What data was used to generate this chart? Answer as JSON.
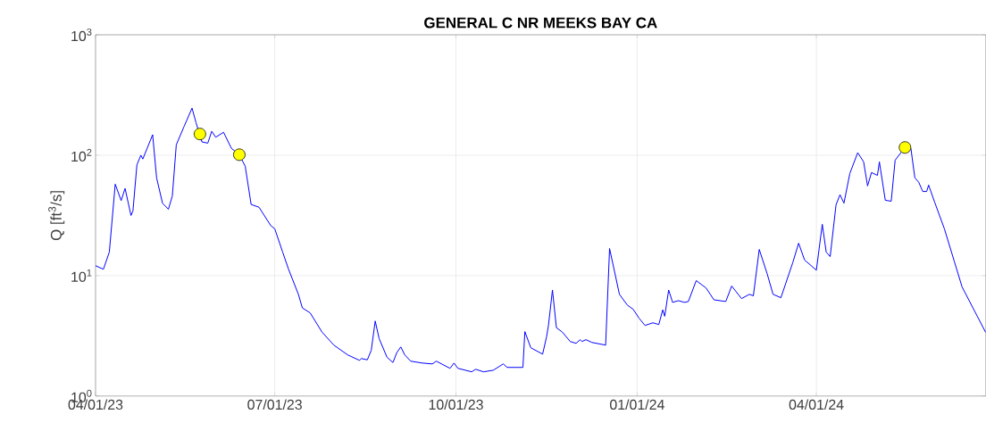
{
  "chart_data": {
    "type": "line",
    "title": "GENERAL C NR MEEKS BAY CA",
    "ylabel": "Q [ft$^{3}$/s]",
    "xlim": [
      "2023-04-01",
      "2024-06-26"
    ],
    "ylim": [
      1,
      1000
    ],
    "log": true,
    "grid": true,
    "xticks": [
      {
        "value": "2023-04-01",
        "label": "04/01/23"
      },
      {
        "value": "2023-07-01",
        "label": "07/01/23"
      },
      {
        "value": "2023-10-01",
        "label": "10/01/23"
      },
      {
        "value": "2024-01-01",
        "label": "01/01/24"
      },
      {
        "value": "2024-04-01",
        "label": "04/01/24"
      }
    ],
    "yticks": [
      {
        "value": 1,
        "label": "10$^{0}$"
      },
      {
        "value": 10,
        "label": "10$^{1}$"
      },
      {
        "value": 100,
        "label": "10$^{2}$"
      },
      {
        "value": 1000,
        "label": "10$^{3}$"
      }
    ],
    "series": [
      {
        "color": "#0000ff",
        "x": [
          "2023-04-01",
          "2023-04-05",
          "2023-04-08",
          "2023-04-11",
          "2023-04-14",
          "2023-04-16",
          "2023-04-19",
          "2023-04-20",
          "2023-04-22",
          "2023-04-24",
          "2023-04-25",
          "2023-04-30",
          "2023-05-02",
          "2023-05-05",
          "2023-05-08",
          "2023-05-10",
          "2023-05-12",
          "2023-05-16",
          "2023-05-20",
          "2023-05-22",
          "2023-05-25",
          "2023-05-28",
          "2023-05-30",
          "2023-06-01",
          "2023-06-05",
          "2023-06-09",
          "2023-06-13",
          "2023-06-16",
          "2023-06-19",
          "2023-06-23",
          "2023-06-29",
          "2023-07-01",
          "2023-07-05",
          "2023-07-08",
          "2023-07-13",
          "2023-07-15",
          "2023-07-19",
          "2023-07-25",
          "2023-07-31",
          "2023-08-07",
          "2023-08-13",
          "2023-08-14",
          "2023-08-17",
          "2023-08-19",
          "2023-08-21",
          "2023-08-23",
          "2023-08-27",
          "2023-08-30",
          "2023-09-01",
          "2023-09-03",
          "2023-09-05",
          "2023-09-08",
          "2023-09-14",
          "2023-09-19",
          "2023-09-21",
          "2023-09-28",
          "2023-09-30",
          "2023-10-02",
          "2023-10-09",
          "2023-10-11",
          "2023-10-15",
          "2023-10-20",
          "2023-10-25",
          "2023-10-27",
          "2023-11-04",
          "2023-11-05",
          "2023-11-08",
          "2023-11-14",
          "2023-11-16",
          "2023-11-17",
          "2023-11-19",
          "2023-11-21",
          "2023-11-24",
          "2023-11-28",
          "2023-12-01",
          "2023-12-03",
          "2023-12-04",
          "2023-12-06",
          "2023-12-09",
          "2023-12-16",
          "2023-12-18",
          "2023-12-23",
          "2023-12-27",
          "2023-12-30",
          "2024-01-02",
          "2024-01-05",
          "2024-01-09",
          "2024-01-12",
          "2024-01-14",
          "2024-01-15",
          "2024-01-17",
          "2024-01-19",
          "2024-01-22",
          "2024-01-25",
          "2024-01-27",
          "2024-01-31",
          "2024-02-05",
          "2024-02-09",
          "2024-02-15",
          "2024-02-18",
          "2024-02-23",
          "2024-02-27",
          "2024-02-29",
          "2024-03-03",
          "2024-03-07",
          "2024-03-10",
          "2024-03-14",
          "2024-03-20",
          "2024-03-23",
          "2024-03-26",
          "2024-04-01",
          "2024-04-04",
          "2024-04-06",
          "2024-04-08",
          "2024-04-11",
          "2024-04-13",
          "2024-04-15",
          "2024-04-18",
          "2024-04-22",
          "2024-04-25",
          "2024-04-27",
          "2024-04-29",
          "2024-05-02",
          "2024-05-03",
          "2024-05-06",
          "2024-05-09",
          "2024-05-11",
          "2024-05-16",
          "2024-05-19",
          "2024-05-21",
          "2024-05-23",
          "2024-05-25",
          "2024-05-27",
          "2024-05-28",
          "2024-05-31",
          "2024-06-05",
          "2024-06-10",
          "2024-06-14",
          "2024-06-19",
          "2024-06-26"
        ],
        "values": [
          12.1,
          11.3,
          15.7,
          57.5,
          42,
          53,
          31.6,
          34.5,
          83,
          100,
          93,
          148,
          65,
          40,
          35.6,
          46,
          122,
          174,
          246,
          187,
          129,
          126,
          158,
          141,
          155,
          114,
          101,
          81,
          39,
          37,
          26,
          24.5,
          15.7,
          11.3,
          7.0,
          5.4,
          4.9,
          3.4,
          2.65,
          2.2,
          1.98,
          2.05,
          2.0,
          2.4,
          4.2,
          3.0,
          2.1,
          1.9,
          2.3,
          2.56,
          2.2,
          1.95,
          1.88,
          1.85,
          1.95,
          1.7,
          1.88,
          1.7,
          1.59,
          1.67,
          1.59,
          1.64,
          1.85,
          1.73,
          1.73,
          3.43,
          2.52,
          2.23,
          3.1,
          3.9,
          7.6,
          3.7,
          3.4,
          2.84,
          2.74,
          2.94,
          2.84,
          2.94,
          2.79,
          2.65,
          16.8,
          7.0,
          5.7,
          5.25,
          4.43,
          3.86,
          4.06,
          3.93,
          5.2,
          4.6,
          7.6,
          6.0,
          6.2,
          6.0,
          6.1,
          9.1,
          7.9,
          6.3,
          6.1,
          8.2,
          6.45,
          7.0,
          6.8,
          16.5,
          10.4,
          7.0,
          6.56,
          12.8,
          18.6,
          13.5,
          11.1,
          26.7,
          15.7,
          14.4,
          38.8,
          47,
          40,
          70.6,
          105,
          88,
          55.6,
          71.8,
          68,
          88,
          42.3,
          41.5,
          91,
          116,
          114,
          65,
          59.6,
          50,
          50,
          56.5,
          41,
          24.5,
          13.2,
          8.05,
          5.6,
          3.37
        ]
      },
      {
        "type": "scatter",
        "color": "#ffff00",
        "marker": "circle",
        "x": [
          "2023-05-24",
          "2023-06-13",
          "2024-05-16"
        ],
        "values": [
          150,
          101,
          116
        ]
      }
    ]
  }
}
